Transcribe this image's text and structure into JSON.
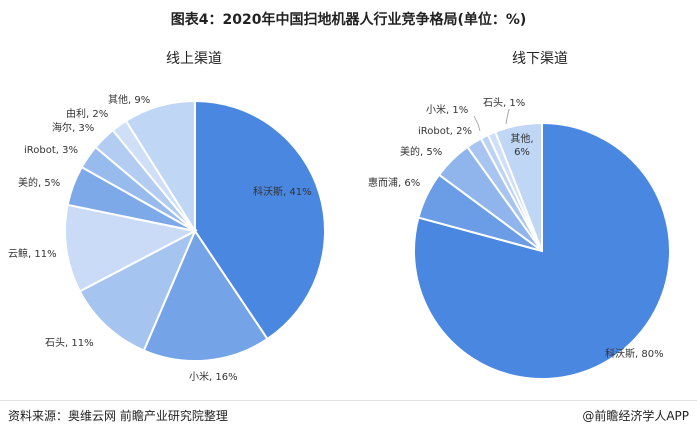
{
  "figure_title": "图表4：2020年中国扫地机器人行业竞争格局(单位：%)",
  "footer": {
    "source": "资料来源：奥维云网 前瞻产业研究院整理",
    "credit": "@前瞻经济学人APP"
  },
  "chart_data": [
    {
      "type": "pie",
      "title": "线上渠道",
      "categories": [
        "科沃斯",
        "小米",
        "石头",
        "云鲸",
        "美的",
        "iRobot",
        "海尔",
        "由利",
        "其他"
      ],
      "values": [
        41,
        16,
        11,
        11,
        5,
        3,
        3,
        2,
        9
      ],
      "labels": [
        "科沃斯, 41%",
        "小米, 16%",
        "石头, 11%",
        "云鲸, 11%",
        "美的, 5%",
        "iRobot, 3%",
        "海尔, 3%",
        "由利, 2%",
        "其他, 9%"
      ],
      "colors": [
        "#4a87e0",
        "#74a3e8",
        "#a6c4f0",
        "#c9dbf6",
        "#7ea9e9",
        "#98bbee",
        "#b3ccf2",
        "#cfdff7",
        "#c0d6f5"
      ],
      "legend": "none"
    },
    {
      "type": "pie",
      "title": "线下渠道",
      "categories": [
        "科沃斯",
        "惠而浦",
        "美的",
        "iRobot",
        "小米",
        "石头",
        "其他"
      ],
      "values": [
        80,
        6,
        5,
        2,
        1,
        1,
        6
      ],
      "labels": [
        "科沃斯, 80%",
        "惠而浦, 6%",
        "美的, 5%",
        "iRobot, 2%",
        "小米, 1%",
        "石头, 1%",
        "其他,\n6%"
      ],
      "colors": [
        "#4a87e0",
        "#6b9de6",
        "#8fb5ec",
        "#a7c5f0",
        "#bcd3f3",
        "#cfdff7",
        "#c0d6f5"
      ],
      "legend": "none"
    }
  ]
}
